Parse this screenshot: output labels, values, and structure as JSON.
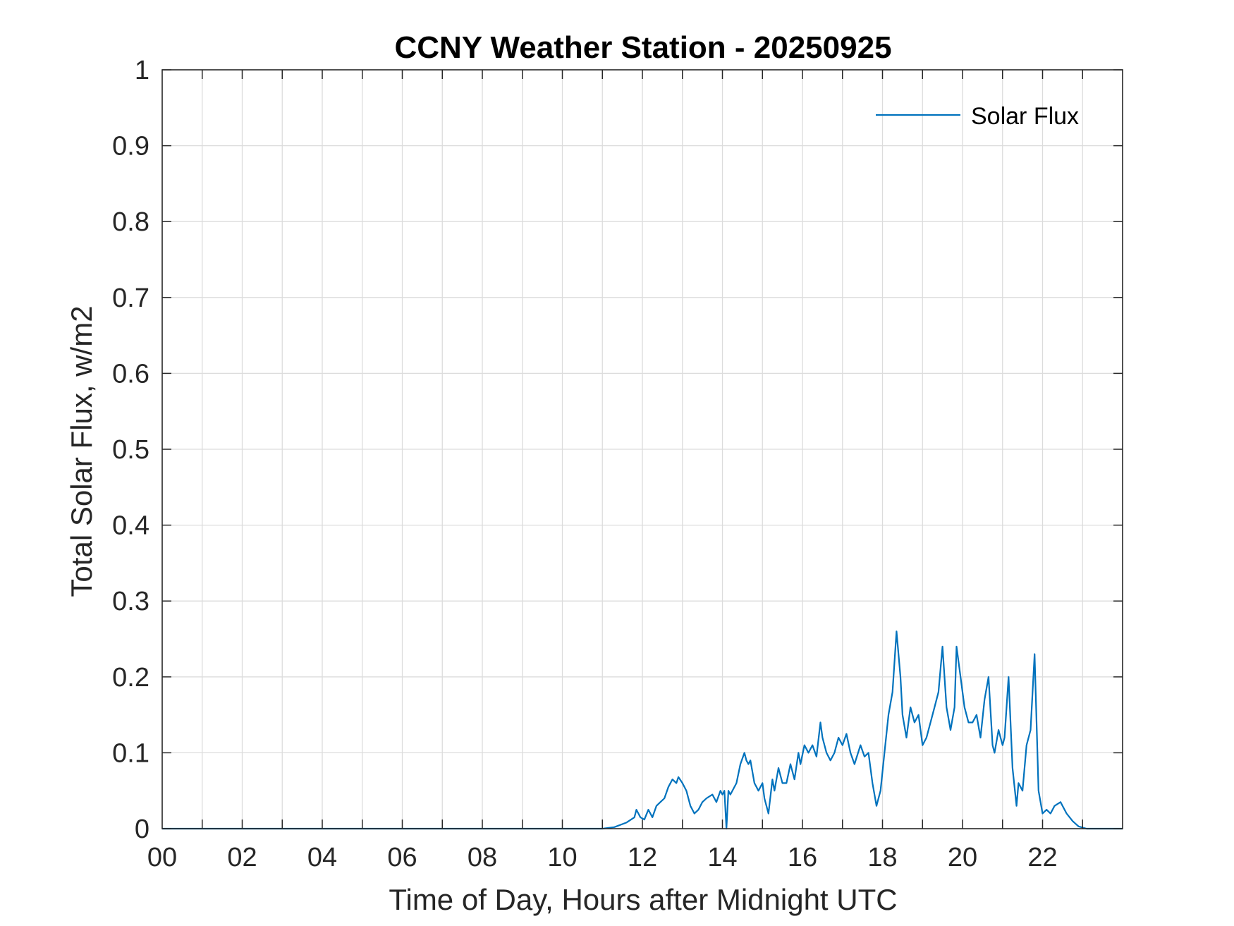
{
  "chart_data": {
    "type": "line",
    "title": "CCNY Weather Station - 20250925",
    "xlabel": "Time of Day, Hours after Midnight UTC",
    "ylabel": "Total Solar Flux, w/m2",
    "xlim": [
      0,
      24
    ],
    "ylim": [
      0,
      1
    ],
    "x_ticks": [
      0,
      2,
      4,
      6,
      8,
      10,
      12,
      14,
      16,
      18,
      20,
      22
    ],
    "x_tick_labels": [
      "00",
      "02",
      "04",
      "06",
      "08",
      "10",
      "12",
      "14",
      "16",
      "18",
      "20",
      "22"
    ],
    "y_ticks": [
      0,
      0.1,
      0.2,
      0.3,
      0.4,
      0.5,
      0.6,
      0.7,
      0.8,
      0.9,
      1
    ],
    "y_tick_labels": [
      "0",
      "0.1",
      "0.2",
      "0.3",
      "0.4",
      "0.5",
      "0.6",
      "0.7",
      "0.8",
      "0.9",
      "1"
    ],
    "grid": true,
    "legend": {
      "position": "top-right",
      "entries": [
        "Solar Flux"
      ]
    },
    "colors": {
      "series": "#0072BD",
      "axis": "#262626",
      "grid": "#dcdcdc"
    },
    "series": [
      {
        "name": "Solar Flux",
        "x": [
          0,
          11.0,
          11.3,
          11.6,
          11.8,
          11.85,
          11.95,
          12.05,
          12.15,
          12.25,
          12.35,
          12.45,
          12.55,
          12.65,
          12.75,
          12.85,
          12.9,
          13.0,
          13.1,
          13.2,
          13.3,
          13.4,
          13.5,
          13.6,
          13.75,
          13.85,
          13.95,
          14.0,
          14.05,
          14.1,
          14.15,
          14.2,
          14.35,
          14.45,
          14.55,
          14.6,
          14.65,
          14.7,
          14.8,
          14.9,
          15.0,
          15.05,
          15.15,
          15.25,
          15.3,
          15.4,
          15.5,
          15.6,
          15.7,
          15.8,
          15.9,
          15.95,
          16.05,
          16.15,
          16.25,
          16.35,
          16.45,
          16.5,
          16.6,
          16.7,
          16.8,
          16.9,
          17.0,
          17.1,
          17.2,
          17.3,
          17.45,
          17.55,
          17.65,
          17.75,
          17.85,
          17.95,
          18.05,
          18.15,
          18.25,
          18.35,
          18.45,
          18.5,
          18.6,
          18.7,
          18.8,
          18.9,
          19.0,
          19.1,
          19.2,
          19.3,
          19.4,
          19.5,
          19.6,
          19.7,
          19.8,
          19.85,
          19.95,
          20.05,
          20.15,
          20.25,
          20.35,
          20.45,
          20.55,
          20.65,
          20.75,
          20.8,
          20.9,
          21.0,
          21.05,
          21.15,
          21.25,
          21.35,
          21.4,
          21.5,
          21.6,
          21.7,
          21.8,
          21.9,
          22.0,
          22.1,
          22.2,
          22.3,
          22.45,
          22.6,
          22.75,
          22.9,
          23.1,
          24
        ],
        "y": [
          0,
          0,
          0.002,
          0.008,
          0.015,
          0.025,
          0.015,
          0.012,
          0.025,
          0.015,
          0.03,
          0.035,
          0.04,
          0.055,
          0.065,
          0.06,
          0.068,
          0.06,
          0.05,
          0.03,
          0.02,
          0.025,
          0.035,
          0.04,
          0.045,
          0.035,
          0.05,
          0.045,
          0.05,
          0.0,
          0.05,
          0.045,
          0.06,
          0.085,
          0.1,
          0.09,
          0.085,
          0.09,
          0.06,
          0.05,
          0.06,
          0.04,
          0.02,
          0.065,
          0.05,
          0.08,
          0.06,
          0.06,
          0.085,
          0.065,
          0.1,
          0.085,
          0.11,
          0.1,
          0.11,
          0.095,
          0.14,
          0.12,
          0.1,
          0.09,
          0.1,
          0.12,
          0.11,
          0.125,
          0.1,
          0.085,
          0.11,
          0.095,
          0.1,
          0.06,
          0.03,
          0.05,
          0.1,
          0.15,
          0.18,
          0.26,
          0.2,
          0.15,
          0.12,
          0.16,
          0.14,
          0.15,
          0.11,
          0.12,
          0.14,
          0.16,
          0.18,
          0.24,
          0.16,
          0.13,
          0.16,
          0.24,
          0.2,
          0.16,
          0.14,
          0.14,
          0.15,
          0.12,
          0.17,
          0.2,
          0.11,
          0.1,
          0.13,
          0.11,
          0.12,
          0.2,
          0.08,
          0.03,
          0.06,
          0.05,
          0.11,
          0.13,
          0.23,
          0.05,
          0.02,
          0.025,
          0.02,
          0.03,
          0.035,
          0.02,
          0.01,
          0.003,
          0.0,
          0
        ]
      }
    ]
  }
}
